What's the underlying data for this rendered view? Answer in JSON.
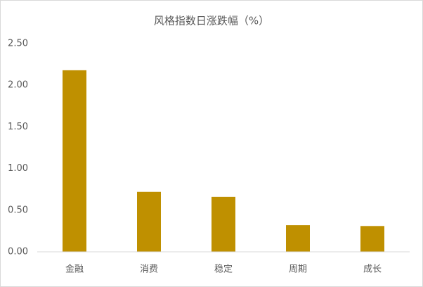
{
  "chart_data": {
    "type": "bar",
    "title": "风格指数日涨跌幅（%）",
    "categories": [
      "金融",
      "消费",
      "稳定",
      "周期",
      "成长"
    ],
    "values": [
      2.18,
      0.72,
      0.66,
      0.32,
      0.31
    ],
    "color": "#bf9000",
    "ylim": [
      0,
      2.5
    ],
    "yticks": [
      {
        "value": 0,
        "label": "0.00"
      },
      {
        "value": 0.5,
        "label": "0.50"
      },
      {
        "value": 1,
        "label": "1.00"
      },
      {
        "value": 1.5,
        "label": "1.50"
      },
      {
        "value": 2,
        "label": "2.00"
      },
      {
        "value": 2.5,
        "label": "2.50"
      }
    ],
    "grid": false
  }
}
